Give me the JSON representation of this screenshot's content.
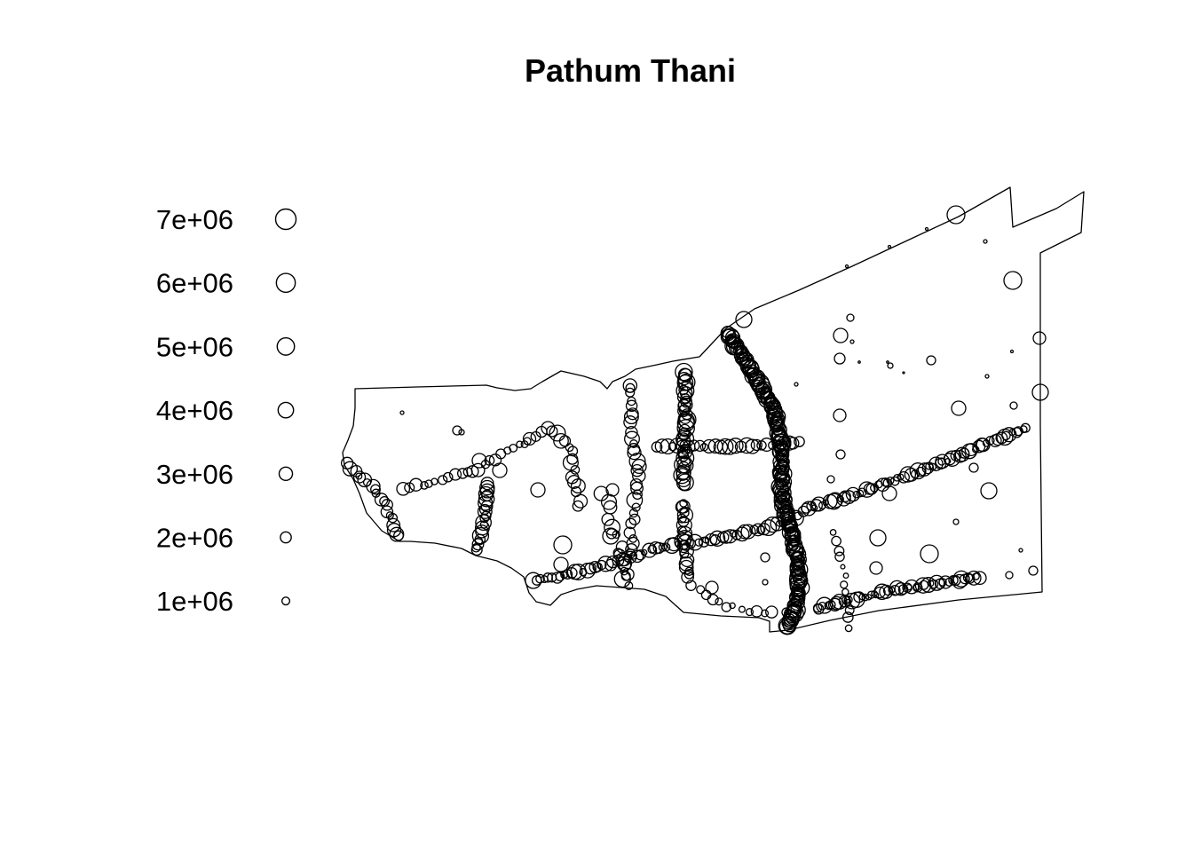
{
  "title": "Pathum Thani",
  "legend": {
    "items": [
      {
        "label": "7e+06",
        "value": 7000000
      },
      {
        "label": "6e+06",
        "value": 6000000
      },
      {
        "label": "5e+06",
        "value": 5000000
      },
      {
        "label": "4e+06",
        "value": 4000000
      },
      {
        "label": "3e+06",
        "value": 3000000
      },
      {
        "label": "2e+06",
        "value": 2000000
      },
      {
        "label": "1e+06",
        "value": 1000000
      }
    ]
  },
  "colors": {
    "stroke": "#000000",
    "background": "#ffffff",
    "dense_fill": "#222222"
  }
}
